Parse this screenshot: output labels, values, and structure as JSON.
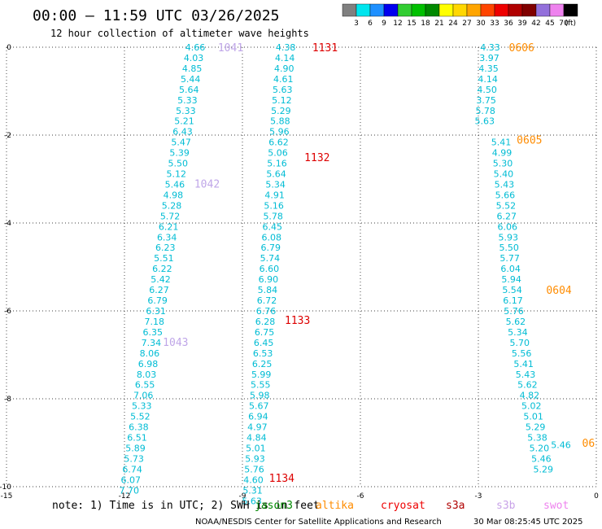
{
  "header": {
    "title": "00:00 – 11:59 UTC 03/26/2025",
    "subtitle": "12 hour collection of altimeter wave heights"
  },
  "colorbar": {
    "labels": [
      "3",
      "6",
      "9",
      "12",
      "15",
      "18",
      "21",
      "24",
      "27",
      "30",
      "33",
      "36",
      "39",
      "42",
      "45",
      "70"
    ],
    "unit": "(ft)",
    "colors": [
      "#808080",
      "#00e5ee",
      "#1e90ff",
      "#0000ee",
      "#32cd32",
      "#00c000",
      "#008800",
      "#ffff00",
      "#ffd700",
      "#ffa500",
      "#ff4500",
      "#ee0000",
      "#b00000",
      "#800000",
      "#9370db",
      "#ee82ee",
      "#000000"
    ]
  },
  "chart_data": {
    "type": "scatter",
    "xlim": [
      -15,
      0
    ],
    "ylim": [
      -10,
      0
    ],
    "xticks": [
      "-15",
      "-12",
      "-9",
      "-6",
      "-3",
      "0"
    ],
    "yticks": [
      "0",
      "-2",
      "-4",
      "-6",
      "-8",
      "-10"
    ],
    "grid": true,
    "swh_color": "#00bcd4",
    "tracks": [
      {
        "name": "track-1",
        "points": [
          {
            "x": -10.2,
            "y": 0.0,
            "v": "4.66"
          },
          {
            "x": -10.24,
            "y": -0.24,
            "v": "4.03"
          },
          {
            "x": -10.28,
            "y": -0.48,
            "v": "4.85"
          },
          {
            "x": -10.32,
            "y": -0.72,
            "v": "5.44"
          },
          {
            "x": -10.36,
            "y": -0.96,
            "v": "5.64"
          },
          {
            "x": -10.4,
            "y": -1.2,
            "v": "5.33"
          },
          {
            "x": -10.44,
            "y": -1.44,
            "v": "5.33"
          },
          {
            "x": -10.48,
            "y": -1.68,
            "v": "5.21"
          },
          {
            "x": -10.52,
            "y": -1.92,
            "v": "6.43"
          },
          {
            "x": -10.56,
            "y": -2.16,
            "v": "5.47"
          },
          {
            "x": -10.6,
            "y": -2.4,
            "v": "5.39"
          },
          {
            "x": -10.64,
            "y": -2.64,
            "v": "5.50"
          },
          {
            "x": -10.68,
            "y": -2.88,
            "v": "5.12"
          },
          {
            "x": -10.72,
            "y": -3.12,
            "v": "5.46"
          },
          {
            "x": -10.76,
            "y": -3.36,
            "v": "4.98"
          },
          {
            "x": -10.8,
            "y": -3.6,
            "v": "5.28"
          },
          {
            "x": -10.84,
            "y": -3.84,
            "v": "5.72"
          },
          {
            "x": -10.88,
            "y": -4.08,
            "v": "6.21"
          },
          {
            "x": -10.92,
            "y": -4.32,
            "v": "6.34"
          },
          {
            "x": -10.96,
            "y": -4.56,
            "v": "6.23"
          },
          {
            "x": -11.0,
            "y": -4.8,
            "v": "5.51"
          },
          {
            "x": -11.04,
            "y": -5.04,
            "v": "6.22"
          },
          {
            "x": -11.08,
            "y": -5.28,
            "v": "5.42"
          },
          {
            "x": -11.12,
            "y": -5.52,
            "v": "6.27"
          },
          {
            "x": -11.16,
            "y": -5.76,
            "v": "6.79"
          },
          {
            "x": -11.2,
            "y": -6.0,
            "v": "6.31"
          },
          {
            "x": -11.24,
            "y": -6.24,
            "v": "7.18"
          },
          {
            "x": -11.28,
            "y": -6.48,
            "v": "6.35"
          },
          {
            "x": -11.32,
            "y": -6.72,
            "v": "7.34"
          },
          {
            "x": -11.36,
            "y": -6.96,
            "v": "8.06"
          },
          {
            "x": -11.4,
            "y": -7.2,
            "v": "6.98"
          },
          {
            "x": -11.44,
            "y": -7.44,
            "v": "8.03"
          },
          {
            "x": -11.48,
            "y": -7.68,
            "v": "6.55"
          },
          {
            "x": -11.52,
            "y": -7.92,
            "v": "7.06"
          },
          {
            "x": -11.56,
            "y": -8.16,
            "v": "5.33"
          },
          {
            "x": -11.6,
            "y": -8.4,
            "v": "5.52"
          },
          {
            "x": -11.64,
            "y": -8.64,
            "v": "6.38"
          },
          {
            "x": -11.68,
            "y": -8.88,
            "v": "6.51"
          },
          {
            "x": -11.72,
            "y": -9.12,
            "v": "5.89"
          },
          {
            "x": -11.76,
            "y": -9.36,
            "v": "5.73"
          },
          {
            "x": -11.8,
            "y": -9.6,
            "v": "6.74"
          },
          {
            "x": -11.84,
            "y": -9.84,
            "v": "6.07"
          },
          {
            "x": -11.88,
            "y": -10.08,
            "v": "7.70"
          }
        ]
      },
      {
        "name": "track-2",
        "points": [
          {
            "x": -7.9,
            "y": 0.0,
            "v": "4.38"
          },
          {
            "x": -7.92,
            "y": -0.24,
            "v": "4.14"
          },
          {
            "x": -7.94,
            "y": -0.48,
            "v": "4.90"
          },
          {
            "x": -7.96,
            "y": -0.72,
            "v": "4.61"
          },
          {
            "x": -7.98,
            "y": -0.96,
            "v": "5.63"
          },
          {
            "x": -8.0,
            "y": -1.2,
            "v": "5.12"
          },
          {
            "x": -8.02,
            "y": -1.44,
            "v": "5.29"
          },
          {
            "x": -8.04,
            "y": -1.68,
            "v": "5.88"
          },
          {
            "x": -8.06,
            "y": -1.92,
            "v": "5.96"
          },
          {
            "x": -8.08,
            "y": -2.16,
            "v": "6.62"
          },
          {
            "x": -8.1,
            "y": -2.4,
            "v": "5.06"
          },
          {
            "x": -8.12,
            "y": -2.64,
            "v": "5.16"
          },
          {
            "x": -8.14,
            "y": -2.88,
            "v": "5.64"
          },
          {
            "x": -8.16,
            "y": -3.12,
            "v": "5.34"
          },
          {
            "x": -8.18,
            "y": -3.36,
            "v": "4.91"
          },
          {
            "x": -8.2,
            "y": -3.6,
            "v": "5.16"
          },
          {
            "x": -8.22,
            "y": -3.84,
            "v": "5.78"
          },
          {
            "x": -8.24,
            "y": -4.08,
            "v": "6.45"
          },
          {
            "x": -8.26,
            "y": -4.32,
            "v": "6.08"
          },
          {
            "x": -8.28,
            "y": -4.56,
            "v": "6.79"
          },
          {
            "x": -8.3,
            "y": -4.8,
            "v": "5.74"
          },
          {
            "x": -8.32,
            "y": -5.04,
            "v": "6.60"
          },
          {
            "x": -8.34,
            "y": -5.28,
            "v": "6.90"
          },
          {
            "x": -8.36,
            "y": -5.52,
            "v": "5.84"
          },
          {
            "x": -8.38,
            "y": -5.76,
            "v": "6.72"
          },
          {
            "x": -8.4,
            "y": -6.0,
            "v": "6.76"
          },
          {
            "x": -8.42,
            "y": -6.24,
            "v": "6.28"
          },
          {
            "x": -8.44,
            "y": -6.48,
            "v": "6.75"
          },
          {
            "x": -8.46,
            "y": -6.72,
            "v": "6.45"
          },
          {
            "x": -8.48,
            "y": -6.96,
            "v": "6.53"
          },
          {
            "x": -8.5,
            "y": -7.2,
            "v": "6.25"
          },
          {
            "x": -8.52,
            "y": -7.44,
            "v": "5.99"
          },
          {
            "x": -8.54,
            "y": -7.68,
            "v": "5.55"
          },
          {
            "x": -8.56,
            "y": -7.92,
            "v": "5.98"
          },
          {
            "x": -8.58,
            "y": -8.16,
            "v": "5.67"
          },
          {
            "x": -8.6,
            "y": -8.4,
            "v": "6.94"
          },
          {
            "x": -8.62,
            "y": -8.64,
            "v": "4.97"
          },
          {
            "x": -8.64,
            "y": -8.88,
            "v": "4.84"
          },
          {
            "x": -8.66,
            "y": -9.12,
            "v": "5.01"
          },
          {
            "x": -8.68,
            "y": -9.36,
            "v": "5.93"
          },
          {
            "x": -8.7,
            "y": -9.6,
            "v": "5.76"
          },
          {
            "x": -8.72,
            "y": -9.84,
            "v": "4.60"
          },
          {
            "x": -8.74,
            "y": -10.08,
            "v": "5.31"
          },
          {
            "x": -8.76,
            "y": -10.32,
            "v": "5.63"
          }
        ]
      },
      {
        "name": "track-3",
        "points": [
          {
            "x": -2.7,
            "y": 0.0,
            "v": "4.33"
          },
          {
            "x": -2.72,
            "y": -0.24,
            "v": "3.97"
          },
          {
            "x": -2.74,
            "y": -0.48,
            "v": "4.35"
          },
          {
            "x": -2.76,
            "y": -0.72,
            "v": "4.14"
          },
          {
            "x": -2.78,
            "y": -0.96,
            "v": "4.50"
          },
          {
            "x": -2.8,
            "y": -1.2,
            "v": "3.75"
          },
          {
            "x": -2.82,
            "y": -1.44,
            "v": "5.78"
          },
          {
            "x": -2.84,
            "y": -1.68,
            "v": "5.63"
          },
          {
            "x": -2.42,
            "y": -2.16,
            "v": "5.41"
          },
          {
            "x": -2.4,
            "y": -2.4,
            "v": "4.99"
          },
          {
            "x": -2.38,
            "y": -2.64,
            "v": "5.30"
          },
          {
            "x": -2.36,
            "y": -2.88,
            "v": "5.40"
          },
          {
            "x": -2.34,
            "y": -3.12,
            "v": "5.43"
          },
          {
            "x": -2.32,
            "y": -3.36,
            "v": "5.66"
          },
          {
            "x": -2.3,
            "y": -3.6,
            "v": "5.52"
          },
          {
            "x": -2.28,
            "y": -3.84,
            "v": "6.27"
          },
          {
            "x": -2.26,
            "y": -4.08,
            "v": "6.06"
          },
          {
            "x": -2.24,
            "y": -4.32,
            "v": "5.93"
          },
          {
            "x": -2.22,
            "y": -4.56,
            "v": "5.50"
          },
          {
            "x": -2.2,
            "y": -4.8,
            "v": "5.77"
          },
          {
            "x": -2.18,
            "y": -5.04,
            "v": "6.04"
          },
          {
            "x": -2.16,
            "y": -5.28,
            "v": "5.94"
          },
          {
            "x": -2.14,
            "y": -5.52,
            "v": "5.54"
          },
          {
            "x": -2.12,
            "y": -5.76,
            "v": "6.17"
          },
          {
            "x": -2.1,
            "y": -6.0,
            "v": "5.76"
          },
          {
            "x": -2.05,
            "y": -6.24,
            "v": "5.62"
          },
          {
            "x": -2.0,
            "y": -6.48,
            "v": "5.34"
          },
          {
            "x": -1.95,
            "y": -6.72,
            "v": "5.70"
          },
          {
            "x": -1.9,
            "y": -6.96,
            "v": "5.56"
          },
          {
            "x": -1.85,
            "y": -7.2,
            "v": "5.41"
          },
          {
            "x": -1.8,
            "y": -7.44,
            "v": "5.43"
          },
          {
            "x": -1.75,
            "y": -7.68,
            "v": "5.62"
          },
          {
            "x": -1.7,
            "y": -7.92,
            "v": "4.82"
          },
          {
            "x": -1.65,
            "y": -8.16,
            "v": "5.02"
          },
          {
            "x": -1.6,
            "y": -8.4,
            "v": "5.01"
          },
          {
            "x": -1.55,
            "y": -8.64,
            "v": "5.29"
          },
          {
            "x": -1.5,
            "y": -8.88,
            "v": "5.38"
          },
          {
            "x": -1.45,
            "y": -9.12,
            "v": "5.20"
          },
          {
            "x": -1.4,
            "y": -9.36,
            "v": "5.46"
          },
          {
            "x": -1.35,
            "y": -9.6,
            "v": "5.29"
          }
        ]
      }
    ],
    "extra_points": [
      {
        "x": -0.9,
        "y": -9.05,
        "v": "5.46"
      }
    ],
    "time_labels": [
      {
        "x": -9.3,
        "y": 0.0,
        "text": "1041",
        "color": "#bfa6e8"
      },
      {
        "x": -9.9,
        "y": -3.1,
        "text": "1042",
        "color": "#bfa6e8"
      },
      {
        "x": -10.7,
        "y": -6.7,
        "text": "1043",
        "color": "#bfa6e8"
      },
      {
        "x": -6.9,
        "y": 0.0,
        "text": "1131",
        "color": "#dd0000"
      },
      {
        "x": -7.1,
        "y": -2.5,
        "text": "1132",
        "color": "#dd0000"
      },
      {
        "x": -7.6,
        "y": -6.2,
        "text": "1133",
        "color": "#dd0000"
      },
      {
        "x": -8.0,
        "y": -9.8,
        "text": "1134",
        "color": "#dd0000"
      },
      {
        "x": -1.9,
        "y": 0.0,
        "text": "0606",
        "color": "#ff8c00"
      },
      {
        "x": -1.7,
        "y": -2.1,
        "text": "0605",
        "color": "#ff8c00"
      },
      {
        "x": -0.95,
        "y": -5.52,
        "text": "0604",
        "color": "#ff8c00"
      },
      {
        "x": -0.2,
        "y": -9.0,
        "text": "06",
        "color": "#ff8c00"
      }
    ]
  },
  "legend": {
    "note": "note: 1) Time is in UTC; 2) SWH is in feet",
    "satellites": [
      {
        "name": "jason3",
        "color": "#008800"
      },
      {
        "name": "altika",
        "color": "#ff8c00"
      },
      {
        "name": "cryosat",
        "color": "#ee0000"
      },
      {
        "name": "s3a",
        "color": "#b00000"
      },
      {
        "name": "s3b",
        "color": "#c8a2e8"
      },
      {
        "name": "swot",
        "color": "#ee82ee"
      }
    ]
  },
  "footer": {
    "credit": "NOAA/NESDIS Center for Satellite Applications and Research",
    "timestamp": "30 Mar 08:25:45 UTC 2025"
  }
}
